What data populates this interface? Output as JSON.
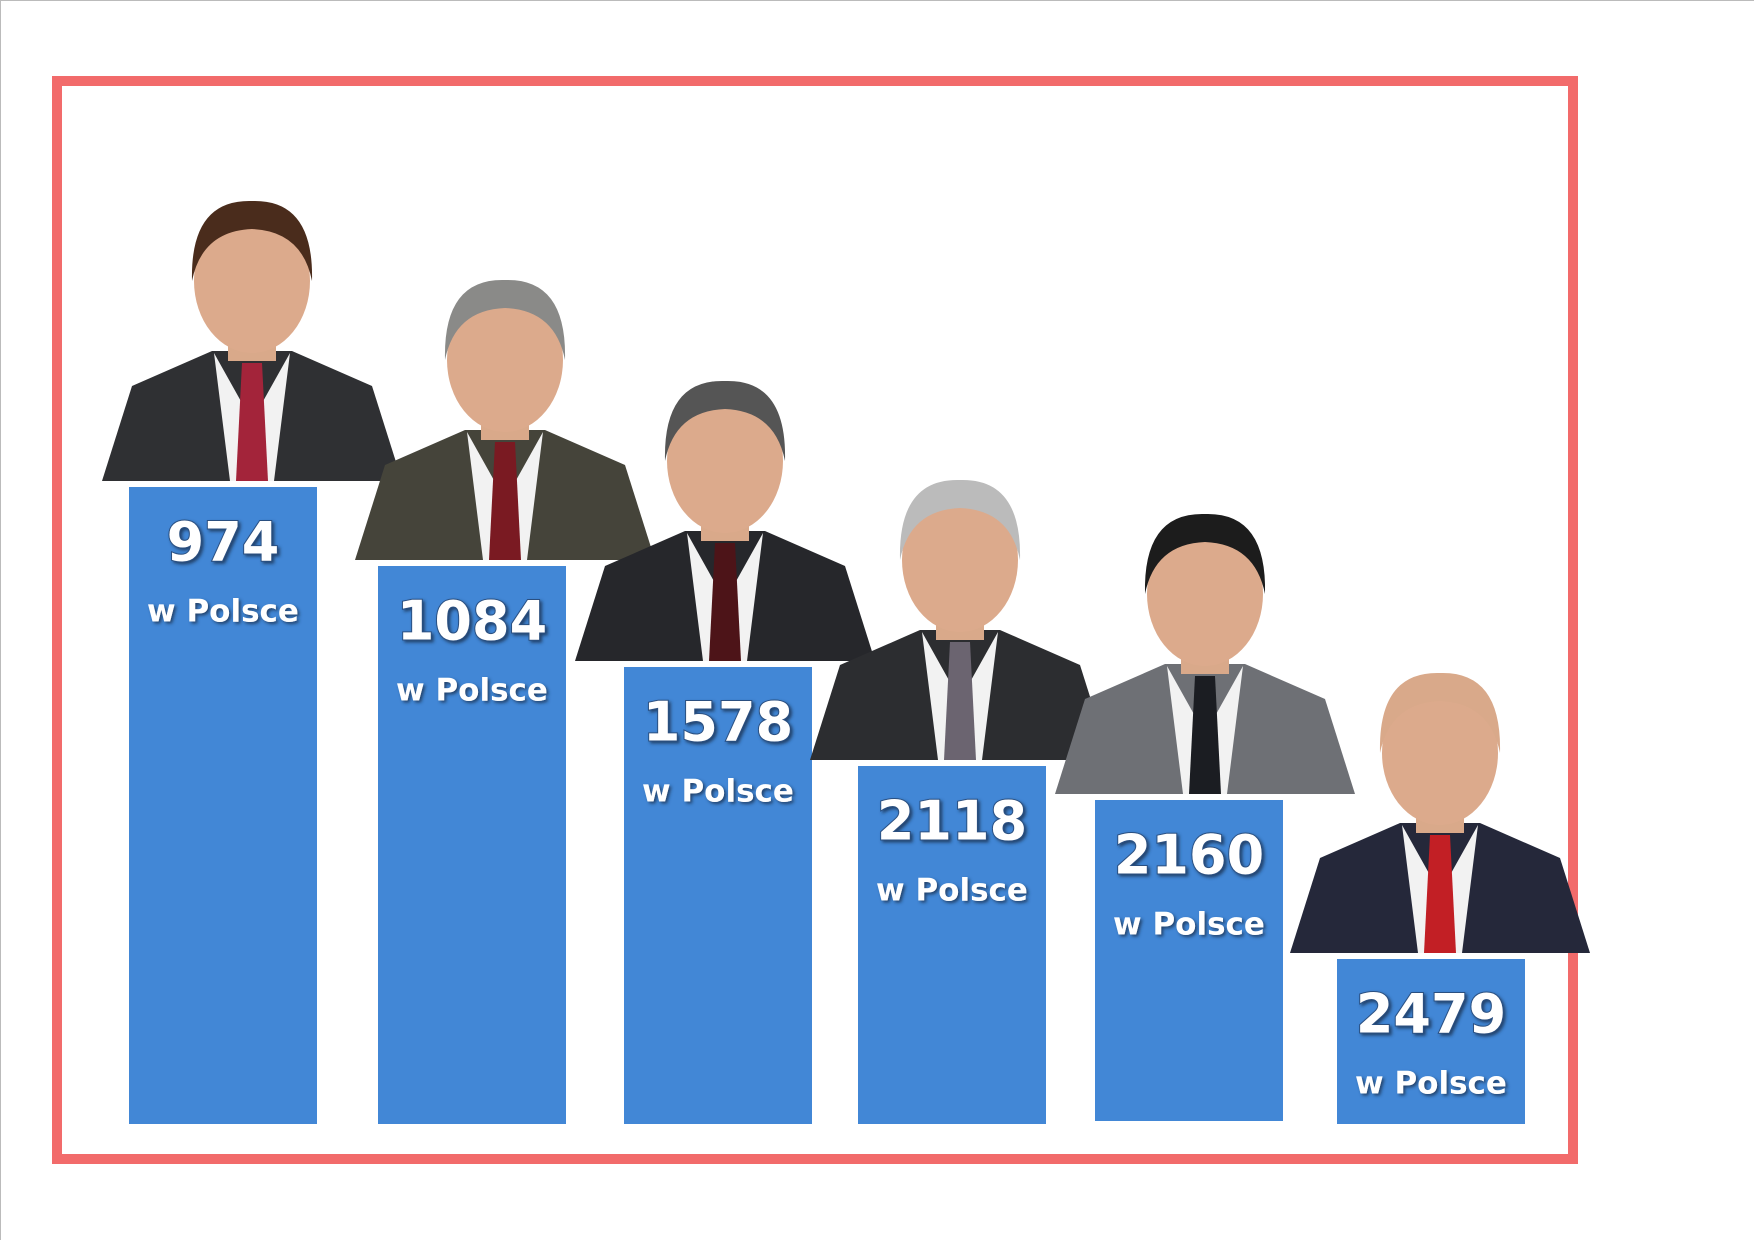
{
  "items": [
    {
      "rank": 974,
      "label": "w Polsce"
    },
    {
      "rank": 1084,
      "label": "w Polsce"
    },
    {
      "rank": 1578,
      "label": "w Polsce"
    },
    {
      "rank": 2118,
      "label": "w Polsce"
    },
    {
      "rank": 2160,
      "label": "w Polsce"
    },
    {
      "rank": 2479,
      "label": "w Polsce"
    }
  ]
}
